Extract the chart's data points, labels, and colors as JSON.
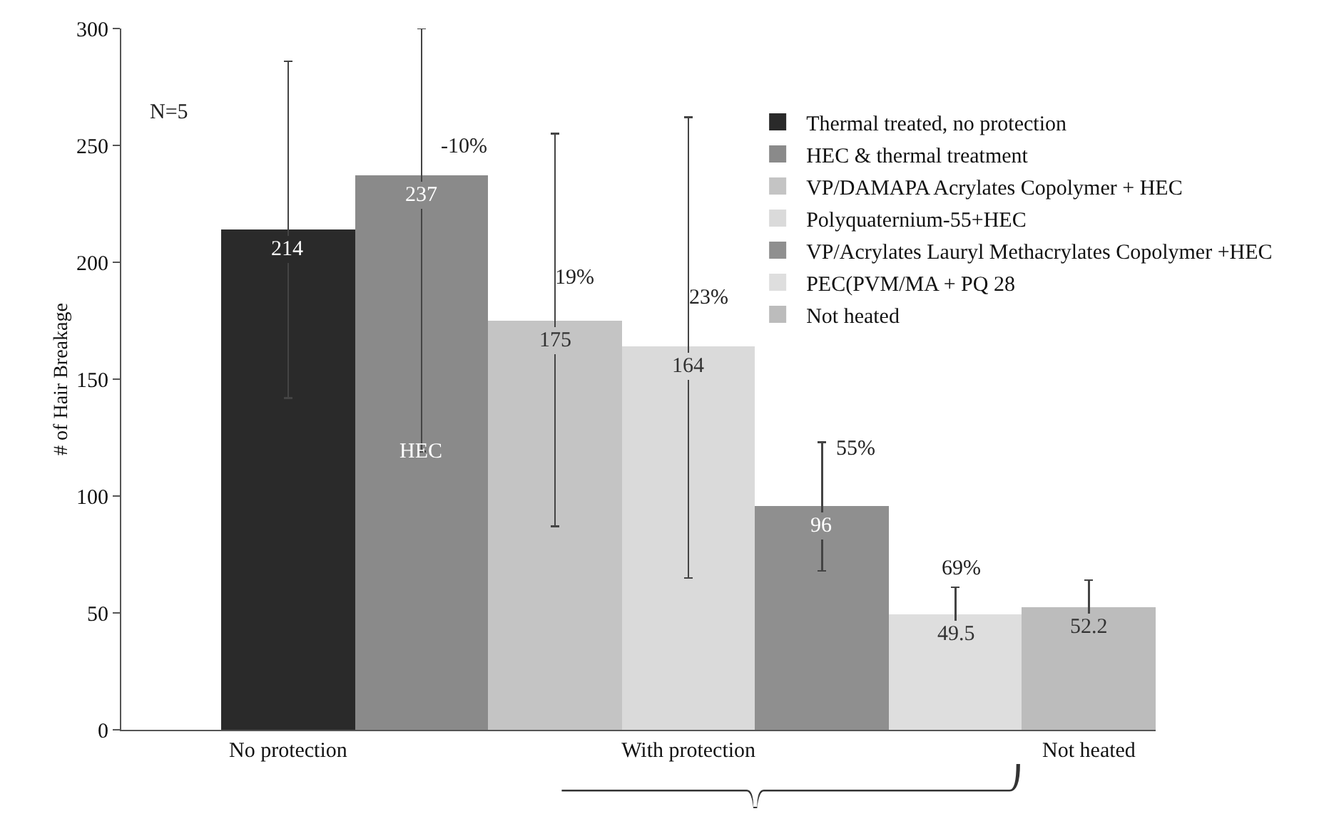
{
  "chart_data": {
    "type": "bar",
    "ylabel": "# of Hair Breakage",
    "categories": [
      "No protection",
      null,
      null,
      "With protection",
      null,
      null,
      "Not heated"
    ],
    "ylim": [
      0,
      300
    ],
    "yticks": [
      0,
      50,
      100,
      150,
      200,
      250,
      300
    ],
    "grid": false,
    "legend": "top right",
    "data_labels": true,
    "series": [
      {
        "name": "Thermal treated, no protection",
        "color": "#2a2a2a",
        "values": [
          214,
          null,
          null,
          null,
          null,
          null,
          null
        ],
        "errors": [
          [
            142,
            286
          ],
          null,
          null,
          null,
          null,
          null,
          null
        ]
      },
      {
        "name": "HEC & thermal treatment",
        "color": "#8a8a8a",
        "values": [
          null,
          237,
          null,
          null,
          null,
          null,
          null
        ],
        "errors": [
          null,
          [
            119,
            300
          ],
          null,
          null,
          null,
          null,
          null
        ]
      },
      {
        "name": "VP/DAMAPA Acrylates Copolymer + HEC",
        "color": "#c4c4c4",
        "values": [
          null,
          null,
          175,
          null,
          null,
          null,
          null
        ],
        "errors": [
          null,
          null,
          [
            87,
            255
          ],
          null,
          null,
          null,
          null
        ]
      },
      {
        "name": "Polyquaternium-55+HEC",
        "color": "#dadada",
        "values": [
          null,
          null,
          null,
          164,
          null,
          null,
          null
        ],
        "errors": [
          null,
          null,
          null,
          [
            65,
            262
          ],
          null,
          null,
          null
        ]
      },
      {
        "name": "VP/Acrylates Lauryl Methacrylates Copolymer +HEC",
        "color": "#8f8f8f",
        "values": [
          null,
          null,
          null,
          null,
          96,
          null,
          null
        ],
        "errors": [
          null,
          null,
          null,
          null,
          [
            68,
            123
          ],
          null,
          null
        ]
      },
      {
        "name": "PEC(PVM/MA + PQ 28",
        "color": "#dedede",
        "values": [
          null,
          null,
          null,
          null,
          null,
          49.5,
          null
        ],
        "errors": [
          null,
          null,
          null,
          null,
          null,
          [
            37,
            61
          ],
          null
        ]
      },
      {
        "name": "Not heated",
        "color": "#bcbcbc",
        "values": [
          null,
          null,
          null,
          null,
          null,
          null,
          52.2
        ],
        "errors": [
          null,
          null,
          null,
          null,
          null,
          null,
          [
            41,
            64
          ]
        ]
      }
    ],
    "annotations": [
      "N=5",
      "-10%",
      "19%",
      "23%",
      "55%",
      "69%",
      "HEC"
    ]
  }
}
